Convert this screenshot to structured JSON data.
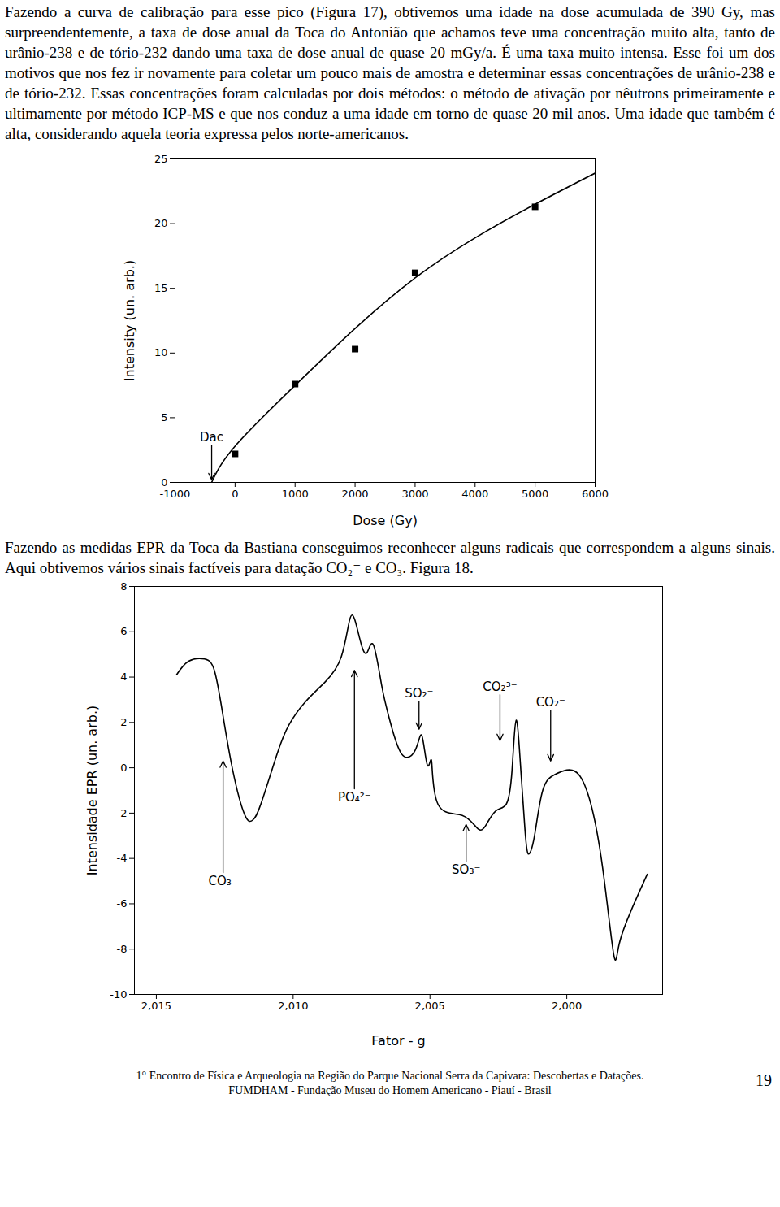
{
  "paragraphs": [
    "Fazendo a curva de calibração para esse pico (Figura 17), obtivemos uma idade na dose acumulada de 390 Gy, mas surpreendentemente, a taxa de dose anual da Toca do Antonião que achamos teve uma concentração muito alta, tanto de urânio-238 e de tório-232 dando uma taxa de dose anual de quase 20 mGy/a. É uma taxa muito intensa. Esse foi um dos motivos que nos fez ir novamente para coletar um pouco mais de amostra e determinar essas concentrações de urânio-238 e de tório-232. Essas concentrações foram calculadas por dois métodos: o método de ativação por nêutrons primeiramente e ultimamente por método ICP-MS e que nos conduz a uma idade em torno de quase 20 mil anos. Uma idade que também é alta, considerando aquela teoria expressa pelos norte-americanos.",
    "Fazendo as medidas EPR da Toca da Bastiana conseguimos reconhecer alguns radicais que correspondem a alguns sinais. Aqui obtivemos vários sinais factíveis para datação CO₂⁻ e CO₃. Figura 18."
  ],
  "chart_data": [
    {
      "type": "scatter",
      "x_label": "Dose (Gy)",
      "y_label": "Intensity (un. arb.)",
      "xlim": [
        -1000,
        6000
      ],
      "xticks": [
        -1000,
        0,
        1000,
        2000,
        3000,
        4000,
        5000,
        6000
      ],
      "ylim": [
        0,
        25
      ],
      "yticks": [
        0,
        5,
        10,
        15,
        20,
        25
      ],
      "series": [
        {
          "type": "scatter",
          "marker": "square",
          "color": "#000000",
          "x": [
            0,
            1000,
            2000,
            3000,
            5000
          ],
          "values": [
            2.2,
            7.6,
            10.3,
            16.2,
            21.3
          ]
        },
        {
          "type": "line",
          "color": "#000000",
          "x": [
            -390,
            0,
            1000,
            2000,
            3000,
            4000,
            5000,
            6000
          ],
          "values": [
            0,
            2.8,
            7.5,
            11.9,
            15.8,
            18.9,
            21.5,
            23.9
          ]
        }
      ],
      "annotations": [
        {
          "text": "Dac",
          "x": -390,
          "y": 0.2,
          "text_y": 3.0
        }
      ]
    },
    {
      "type": "line",
      "x_label": "Fator - g",
      "y_label": "Intensidade EPR (un. arb.)",
      "xlim": [
        2.0158,
        1.9965
      ],
      "xticks": [
        {
          "value": 2.015,
          "label": "2,015"
        },
        {
          "value": 2.01,
          "label": "2,010"
        },
        {
          "value": 2.005,
          "label": "2,005"
        },
        {
          "value": 2.0,
          "label": "2,000"
        }
      ],
      "ylim": [
        -10,
        8
      ],
      "yticks": [
        -10,
        -8,
        -6,
        -4,
        -2,
        0,
        2,
        4,
        6,
        8
      ],
      "color": "#000000",
      "x": [
        2.01426,
        2.01382,
        2.01324,
        2.01288,
        2.01259,
        2.01221,
        2.01176,
        2.01147,
        2.01118,
        2.01059,
        2.01015,
        2.00956,
        2.00882,
        2.00824,
        2.00794,
        2.00774,
        2.0075,
        2.00729,
        2.00706,
        2.00676,
        2.00647,
        2.00603,
        2.00553,
        2.00529,
        2.00509,
        2.00494,
        2.00471,
        2.00382,
        2.00324,
        2.00294,
        2.00259,
        2.00221,
        2.002,
        2.00185,
        2.00168,
        2.00153,
        2.00141,
        2.00118,
        2.00088,
        2.00044,
        2.0,
        1.99956,
        1.99912,
        1.99868,
        1.99829,
        1.99809,
        1.99765,
        1.99706
      ],
      "values": [
        4.1,
        4.7,
        4.8,
        4.3,
        2.5,
        -0.1,
        -2.1,
        -2.3,
        -1.6,
        0.6,
        1.9,
        2.9,
        3.8,
        4.9,
        6.5,
        6.5,
        5.4,
        5.1,
        5.4,
        3.6,
        2.1,
        0.6,
        0.8,
        1.4,
        0.1,
        0.3,
        -1.6,
        -2.1,
        -2.7,
        -2.5,
        -1.9,
        -1.6,
        -0.1,
        2.1,
        -0.1,
        -2.7,
        -3.8,
        -3.0,
        -1.0,
        -0.3,
        -0.1,
        -0.3,
        -1.6,
        -4.5,
        -8.2,
        -7.8,
        -6.3,
        -4.7
      ],
      "annotations": [
        {
          "text": "CO₃⁻",
          "x": 2.01256,
          "y": 0.3,
          "text_y": -4.7
        },
        {
          "text": "PO₄²⁻",
          "x": 2.00776,
          "y": 4.3,
          "text_y": -1.0
        },
        {
          "text": "SO₂⁻",
          "x": 2.0054,
          "y": 1.7,
          "text_y": 3.0
        },
        {
          "text": "SO₃⁻",
          "x": 2.00368,
          "y": -2.5,
          "text_y": -4.2
        },
        {
          "text": "CO₂³⁻",
          "x": 2.00244,
          "y": 1.2,
          "text_y": 3.3
        },
        {
          "text": "CO₂⁻",
          "x": 2.00059,
          "y": 0.3,
          "text_y": 2.6
        }
      ]
    }
  ],
  "footer": {
    "line1": "1° Encontro de Física e Arqueologia na Região do Parque Nacional Serra da Capivara: Descobertas e Datações.",
    "line2": "FUMDHAM - Fundação Museu do Homem Americano - Piauí - Brasil",
    "page": "19"
  }
}
